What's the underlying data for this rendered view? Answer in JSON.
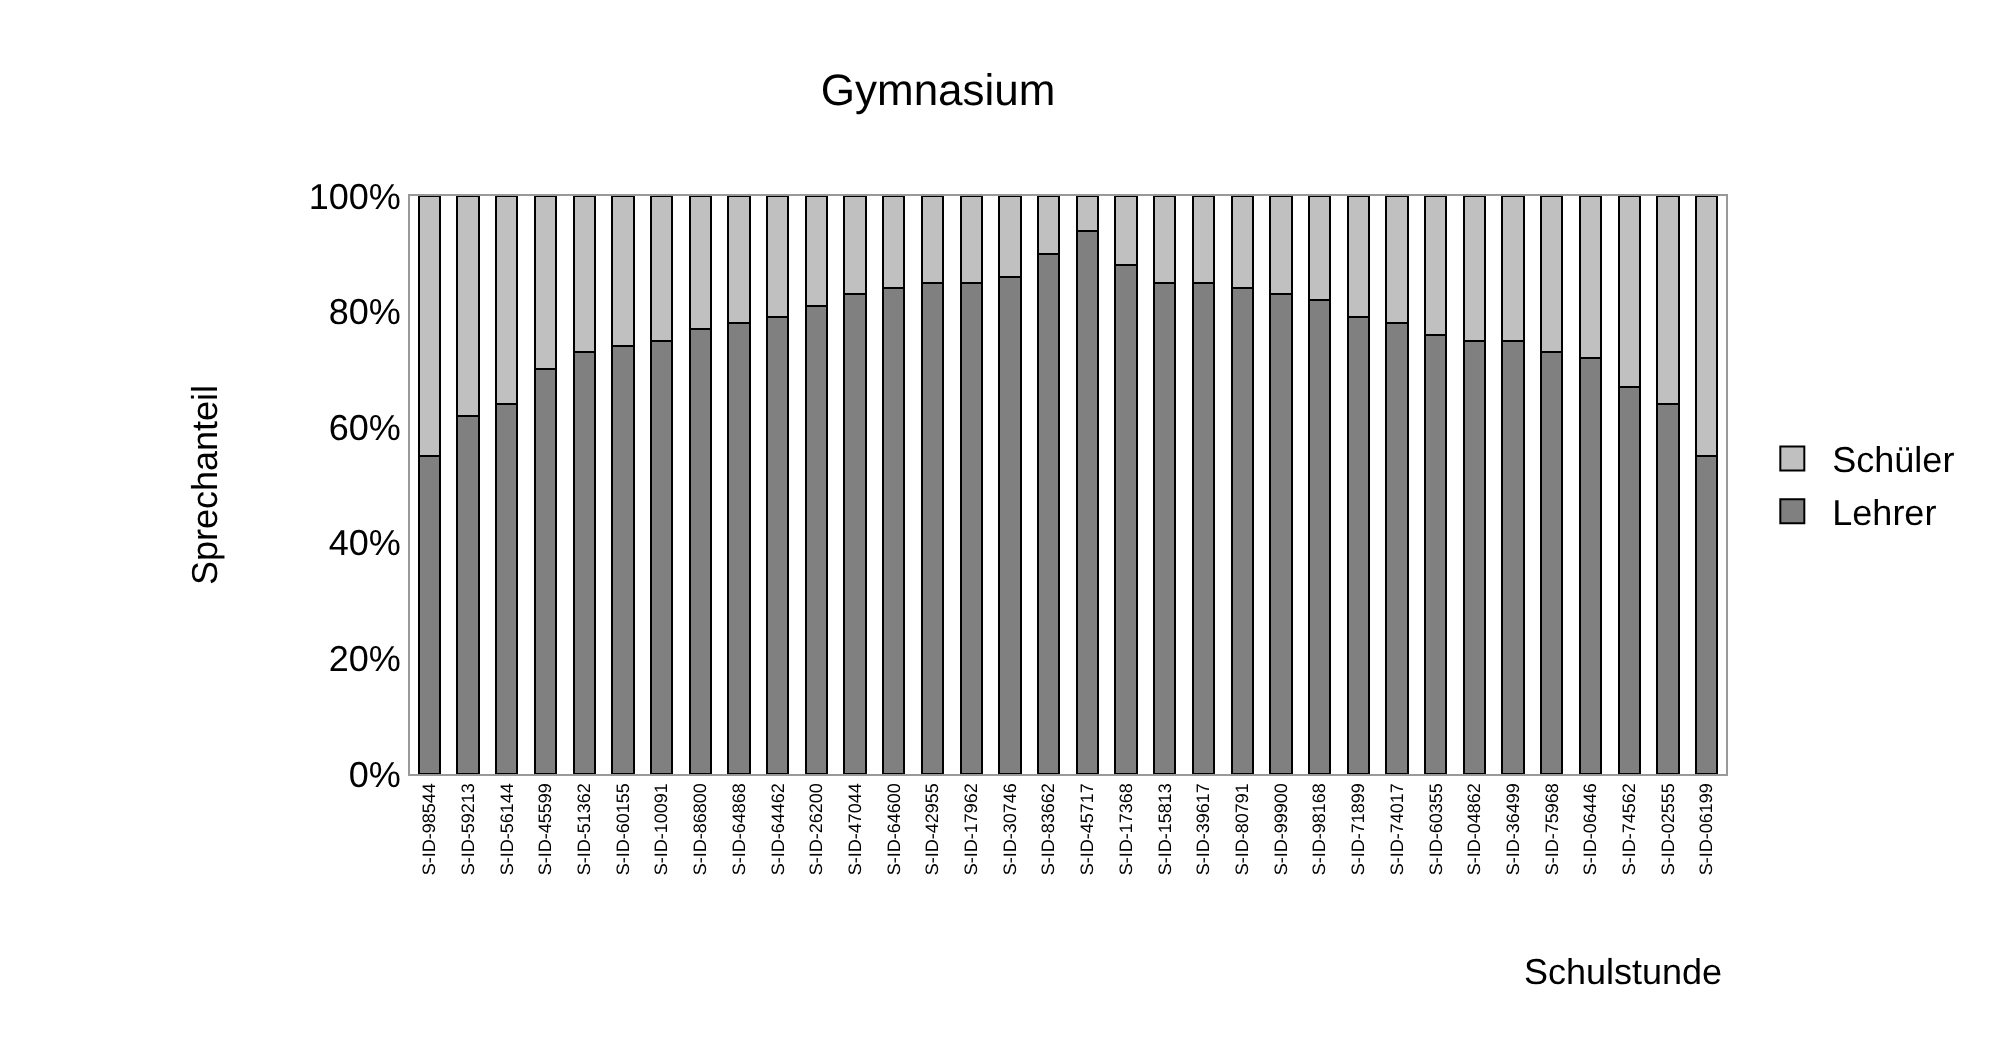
{
  "chart_data": {
    "type": "bar",
    "title": "Gymnasium",
    "xlabel": "Schulstunde",
    "ylabel": "Sprechanteil",
    "stacked": true,
    "legend": "right",
    "grid": false,
    "categories": [
      "S-ID-98544",
      "S-ID-59213",
      "S-ID-56144",
      "S-ID-45599",
      "S-ID-51362",
      "S-ID-60155",
      "S-ID-10091",
      "S-ID-86800",
      "S-ID-64868",
      "S-ID-64462",
      "S-ID-26200",
      "S-ID-47044",
      "S-ID-64600",
      "S-ID-42955",
      "S-ID-17962",
      "S-ID-30746",
      "S-ID-83662",
      "S-ID-45717",
      "S-ID-17368",
      "S-ID-15813",
      "S-ID-39617",
      "S-ID-80791",
      "S-ID-99900",
      "S-ID-98168",
      "S-ID-71899",
      "S-ID-74017",
      "S-ID-60355",
      "S-ID-04862",
      "S-ID-36499",
      "S-ID-75968",
      "S-ID-06446",
      "S-ID-74562",
      "S-ID-02555",
      "S-ID-06199"
    ],
    "series": [
      {
        "name": "Lehrer",
        "color": "#808080",
        "values": [
          55,
          62,
          64,
          70,
          73,
          74,
          75,
          77,
          78,
          79,
          81,
          83,
          84,
          85,
          85,
          86,
          90,
          94,
          88,
          85,
          85,
          84,
          83,
          82,
          79,
          78,
          76,
          75,
          75,
          73,
          72,
          67,
          64,
          55
        ]
      },
      {
        "name": "Schüler",
        "color": "#c0c0c0",
        "values": [
          45,
          38,
          36,
          30,
          27,
          26,
          25,
          23,
          22,
          21,
          19,
          17,
          16,
          15,
          15,
          14,
          10,
          6,
          12,
          15,
          15,
          16,
          17,
          18,
          21,
          22,
          24,
          25,
          25,
          27,
          28,
          33,
          36,
          45
        ]
      }
    ],
    "ylim": [
      0,
      100
    ],
    "yticks": [
      {
        "value": 0,
        "label": "0%"
      },
      {
        "value": 20,
        "label": "20%"
      },
      {
        "value": 40,
        "label": "40%"
      },
      {
        "value": 60,
        "label": "60%"
      },
      {
        "value": 80,
        "label": "80%"
      },
      {
        "value": 100,
        "label": "100%"
      }
    ]
  }
}
